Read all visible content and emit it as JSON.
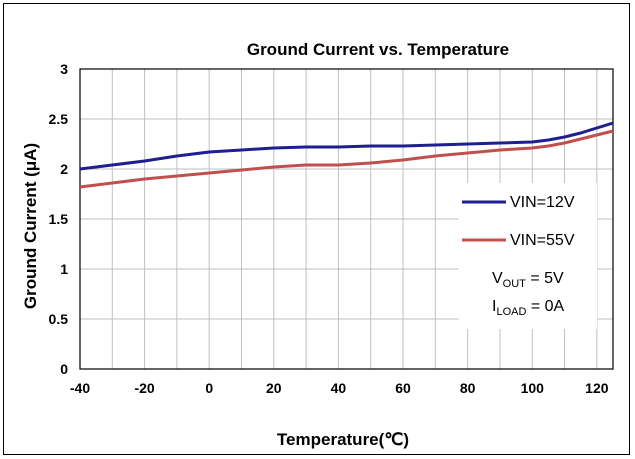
{
  "chart_data": {
    "type": "line",
    "title": "Ground Current vs. Temperature",
    "xlabel": "Temperature(℃)",
    "ylabel": "Ground Current (μA)",
    "xlim": [
      -40,
      125
    ],
    "ylim": [
      0,
      3
    ],
    "x_ticks": [
      "-40",
      "-20",
      "0",
      "20",
      "40",
      "60",
      "80",
      "100",
      "120"
    ],
    "y_ticks": [
      "0",
      "0.5",
      "1",
      "1.5",
      "2",
      "2.5",
      "3"
    ],
    "grid": true,
    "legend_position": "right",
    "series": [
      {
        "name": "VIN=12V",
        "color": "#1f1f8f",
        "x": [
          -40,
          -30,
          -20,
          -10,
          0,
          10,
          20,
          30,
          40,
          50,
          60,
          70,
          80,
          90,
          100,
          105,
          110,
          115,
          120,
          125
        ],
        "y": [
          2.0,
          2.04,
          2.08,
          2.13,
          2.17,
          2.19,
          2.21,
          2.22,
          2.22,
          2.23,
          2.23,
          2.24,
          2.25,
          2.26,
          2.27,
          2.29,
          2.32,
          2.36,
          2.41,
          2.46
        ]
      },
      {
        "name": "VIN=55V",
        "color": "#c0504d",
        "x": [
          -40,
          -30,
          -20,
          -10,
          0,
          10,
          20,
          30,
          40,
          50,
          60,
          70,
          80,
          90,
          100,
          105,
          110,
          115,
          120,
          125
        ],
        "y": [
          1.82,
          1.86,
          1.9,
          1.93,
          1.96,
          1.99,
          2.02,
          2.04,
          2.04,
          2.06,
          2.09,
          2.13,
          2.16,
          2.19,
          2.21,
          2.23,
          2.26,
          2.3,
          2.34,
          2.38
        ]
      }
    ],
    "annotations": {
      "vout_main": "V",
      "vout_sub": "OUT",
      "vout_rest": " = 5V",
      "iload_main": "I",
      "iload_sub": "LOAD",
      "iload_rest": " = 0A"
    }
  }
}
